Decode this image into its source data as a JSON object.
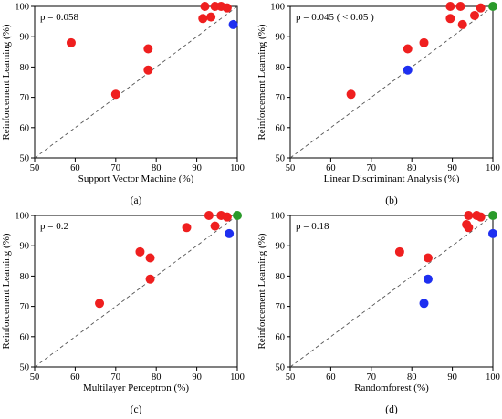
{
  "chart_data": [
    {
      "type": "scatter",
      "panel": "(a)",
      "xlabel": "Support Vector Machine (%)",
      "ylabel": "Reinforcement Learning (%)",
      "annotation": "p = 0.058",
      "xlim": [
        50,
        100
      ],
      "ylim": [
        50,
        100
      ],
      "xticks": [
        50,
        60,
        70,
        80,
        90,
        100
      ],
      "yticks": [
        50,
        60,
        70,
        80,
        90,
        100
      ],
      "reference_line": "y = x (dashed)",
      "grid": false,
      "points": [
        {
          "x": 59,
          "y": 88,
          "color": "red"
        },
        {
          "x": 70,
          "y": 71,
          "color": "red"
        },
        {
          "x": 78,
          "y": 86,
          "color": "red"
        },
        {
          "x": 78,
          "y": 79,
          "color": "red"
        },
        {
          "x": 91.5,
          "y": 96,
          "color": "red"
        },
        {
          "x": 92,
          "y": 100,
          "color": "red"
        },
        {
          "x": 93.5,
          "y": 96.5,
          "color": "red"
        },
        {
          "x": 94.5,
          "y": 100,
          "color": "red"
        },
        {
          "x": 96,
          "y": 100,
          "color": "red"
        },
        {
          "x": 97.5,
          "y": 99.5,
          "color": "red"
        },
        {
          "x": 99,
          "y": 94,
          "color": "blue"
        }
      ]
    },
    {
      "type": "scatter",
      "panel": "(b)",
      "xlabel": "Linear Discriminant Analysis (%)",
      "ylabel": "Reinforcement Learning (%)",
      "annotation": "p = 0.045 ( < 0.05 )",
      "xlim": [
        50,
        100
      ],
      "ylim": [
        50,
        100
      ],
      "xticks": [
        50,
        60,
        70,
        80,
        90,
        100
      ],
      "yticks": [
        50,
        60,
        70,
        80,
        90,
        100
      ],
      "reference_line": "y = x (dashed)",
      "grid": false,
      "points": [
        {
          "x": 65,
          "y": 71,
          "color": "red"
        },
        {
          "x": 79,
          "y": 86,
          "color": "red"
        },
        {
          "x": 83,
          "y": 88,
          "color": "red"
        },
        {
          "x": 89.5,
          "y": 96,
          "color": "red"
        },
        {
          "x": 89.5,
          "y": 100,
          "color": "red"
        },
        {
          "x": 92,
          "y": 100,
          "color": "red"
        },
        {
          "x": 92.5,
          "y": 94,
          "color": "red"
        },
        {
          "x": 95.5,
          "y": 97,
          "color": "red"
        },
        {
          "x": 97,
          "y": 99.5,
          "color": "red"
        },
        {
          "x": 79,
          "y": 79,
          "color": "blue"
        },
        {
          "x": 100,
          "y": 100,
          "color": "green"
        }
      ]
    },
    {
      "type": "scatter",
      "panel": "(c)",
      "xlabel": "Multilayer Perceptron (%)",
      "ylabel": "Reinforcement Learning (%)",
      "annotation": "p = 0.2",
      "xlim": [
        50,
        100
      ],
      "ylim": [
        50,
        100
      ],
      "xticks": [
        50,
        60,
        70,
        80,
        90,
        100
      ],
      "yticks": [
        50,
        60,
        70,
        80,
        90,
        100
      ],
      "reference_line": "y = x (dashed)",
      "grid": false,
      "points": [
        {
          "x": 66,
          "y": 71,
          "color": "red"
        },
        {
          "x": 76,
          "y": 88,
          "color": "red"
        },
        {
          "x": 78.5,
          "y": 86,
          "color": "red"
        },
        {
          "x": 78.5,
          "y": 79,
          "color": "red"
        },
        {
          "x": 87.5,
          "y": 96,
          "color": "red"
        },
        {
          "x": 93,
          "y": 100,
          "color": "red"
        },
        {
          "x": 94.5,
          "y": 96.5,
          "color": "red"
        },
        {
          "x": 96,
          "y": 100,
          "color": "red"
        },
        {
          "x": 97.5,
          "y": 99.5,
          "color": "red"
        },
        {
          "x": 98,
          "y": 94,
          "color": "blue"
        },
        {
          "x": 100,
          "y": 100,
          "color": "green"
        }
      ]
    },
    {
      "type": "scatter",
      "panel": "(d)",
      "xlabel": "Randomforest (%)",
      "ylabel": "Reinforcement Learning (%)",
      "annotation": "p = 0.18",
      "xlim": [
        50,
        100
      ],
      "ylim": [
        50,
        100
      ],
      "xticks": [
        50,
        60,
        70,
        80,
        90,
        100
      ],
      "yticks": [
        50,
        60,
        70,
        80,
        90,
        100
      ],
      "reference_line": "y = x (dashed)",
      "grid": false,
      "points": [
        {
          "x": 77,
          "y": 88,
          "color": "red"
        },
        {
          "x": 84,
          "y": 86,
          "color": "red"
        },
        {
          "x": 93.5,
          "y": 97,
          "color": "red"
        },
        {
          "x": 94,
          "y": 96,
          "color": "red"
        },
        {
          "x": 94,
          "y": 100,
          "color": "red"
        },
        {
          "x": 96,
          "y": 100,
          "color": "red"
        },
        {
          "x": 97,
          "y": 99.5,
          "color": "red"
        },
        {
          "x": 84,
          "y": 79,
          "color": "blue"
        },
        {
          "x": 83,
          "y": 71,
          "color": "blue"
        },
        {
          "x": 100,
          "y": 94,
          "color": "blue"
        },
        {
          "x": 100,
          "y": 100,
          "color": "green"
        }
      ]
    }
  ],
  "colors": {
    "red": "#ef1f1f",
    "blue": "#1e2ff0",
    "green": "#2a9a2a",
    "axis": "#000000",
    "diagonal": "#555555"
  }
}
